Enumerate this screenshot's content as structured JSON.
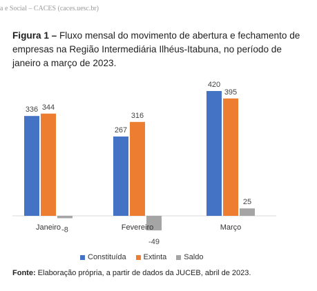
{
  "header": {
    "text": "a e Social – CACES (caces.uesc.br)"
  },
  "caption": {
    "label": "Figura 1 –",
    "text": " Fluxo mensal do movimento de abertura e fechamento de empresas na Região Intermediária Ilhéus-Itabuna, no período de janeiro a março de 2023."
  },
  "source": {
    "label": "Fonte:",
    "text": " Elaboração própria, a partir de dados da JUCEB, abril de 2023."
  },
  "colors": {
    "constituida": "#4472C4",
    "extinta": "#ED7D31",
    "saldo": "#A5A5A5",
    "axis": "#D9D9D9"
  },
  "chart_data": {
    "type": "bar",
    "categories": [
      "Janeiro",
      "Fevereiro",
      "Março"
    ],
    "series": [
      {
        "name": "Constituída",
        "values": [
          336,
          267,
          420
        ]
      },
      {
        "name": "Extinta",
        "values": [
          344,
          316,
          395
        ]
      },
      {
        "name": "Saldo",
        "values": [
          -8,
          -49,
          25
        ]
      }
    ],
    "ylim": [
      -60,
      430
    ],
    "grid": false,
    "legend_position": "bottom"
  }
}
